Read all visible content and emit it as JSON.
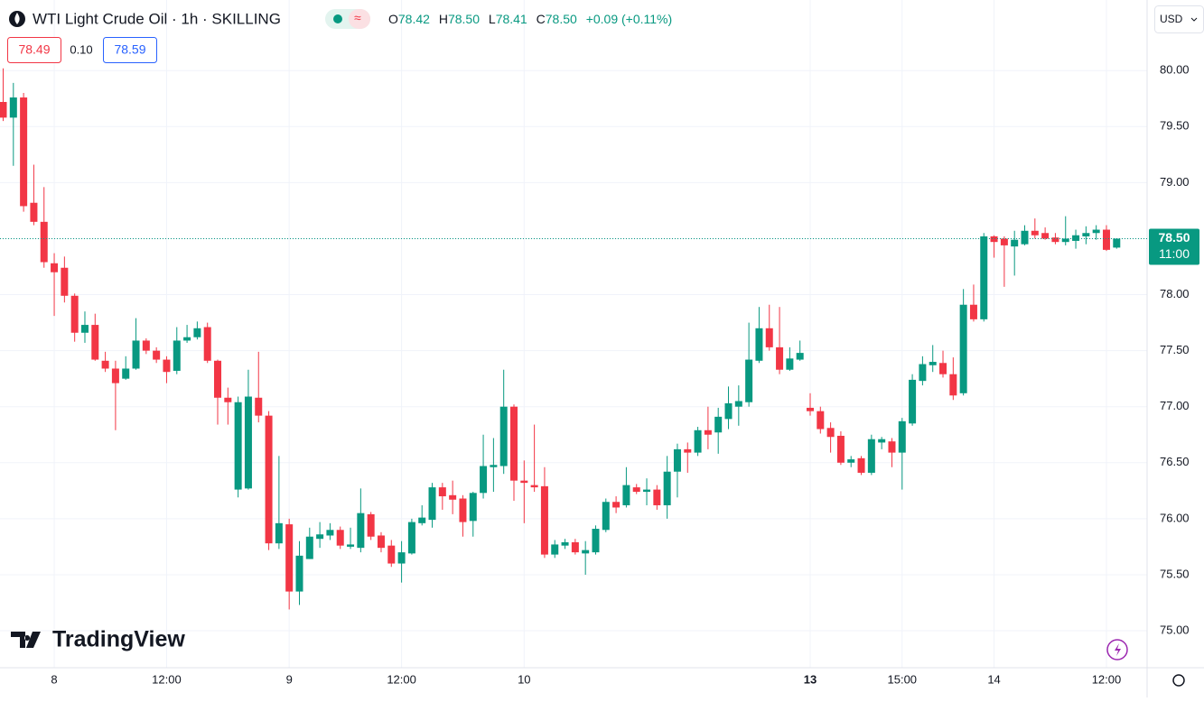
{
  "chart_data": {
    "type": "candlestick",
    "title": "WTI Light Crude Oil · 1h · SKILLING",
    "legend": {
      "o_label": "O",
      "o": "78.42",
      "h_label": "H",
      "h": "78.50",
      "l_label": "L",
      "l": "78.41",
      "c_label": "C",
      "c": "78.50",
      "change": "+0.09 (+0.11%)"
    },
    "bid": "78.49",
    "spread": "0.10",
    "ask": "78.59",
    "currency": "USD",
    "brand": "TradingView",
    "last_price": {
      "value": 78.5,
      "label": "78.50"
    },
    "countdown": "11:00",
    "up_color": "#089981",
    "down_color": "#f23645",
    "categories": [
      null,
      null,
      null,
      null,
      null,
      "8",
      null,
      null,
      null,
      null,
      null,
      null,
      null,
      null,
      null,
      null,
      "12:00",
      null,
      null,
      null,
      null,
      null,
      null,
      null,
      null,
      null,
      null,
      null,
      "9",
      null,
      null,
      null,
      null,
      null,
      null,
      null,
      null,
      null,
      null,
      "12:00",
      null,
      null,
      null,
      null,
      null,
      null,
      null,
      null,
      null,
      null,
      null,
      "10",
      null,
      null,
      null,
      null,
      null,
      null,
      null,
      null,
      null,
      null,
      null,
      null,
      null,
      null,
      null,
      null,
      null,
      null,
      null,
      null,
      null,
      null,
      null,
      null,
      null,
      null,
      null,
      "13",
      null,
      null,
      null,
      null,
      null,
      null,
      null,
      null,
      "15:00",
      null,
      null,
      null,
      null,
      null,
      null,
      null,
      null,
      "14",
      null,
      null,
      null,
      null,
      null,
      null,
      null,
      null,
      null,
      null,
      "12:00",
      null
    ],
    "open": [
      79.72,
      79.58,
      79.76,
      78.82,
      78.65,
      78.28,
      78.24,
      77.99,
      77.66,
      77.73,
      77.41,
      77.34,
      77.25,
      77.34,
      77.59,
      77.5,
      77.42,
      77.32,
      77.59,
      77.62,
      77.71,
      77.41,
      77.08,
      76.26,
      76.27,
      77.08,
      76.92,
      75.78,
      75.95,
      75.35,
      75.64,
      75.82,
      75.85,
      75.9,
      75.75,
      75.74,
      76.04,
      75.85,
      75.76,
      75.6,
      75.69,
      75.96,
      75.99,
      76.28,
      76.21,
      76.18,
      75.98,
      76.23,
      76.46,
      76.47,
      77.0,
      76.34,
      76.3,
      76.29,
      75.68,
      75.76,
      75.79,
      75.69,
      75.7,
      75.9,
      76.15,
      76.12,
      76.28,
      76.24,
      76.26,
      76.12,
      76.42,
      76.62,
      76.59,
      76.79,
      76.77,
      76.89,
      77.0,
      77.04,
      77.41,
      77.7,
      77.53,
      77.33,
      77.42,
      76.99,
      76.96,
      76.81,
      76.74,
      76.5,
      76.54,
      76.41,
      76.68,
      76.69,
      76.59,
      76.85,
      77.23,
      77.37,
      77.39,
      77.29,
      77.12,
      77.91,
      77.78,
      78.52,
      78.5,
      78.43,
      78.45,
      78.57,
      78.55,
      78.51,
      78.47,
      78.48,
      78.52,
      78.55,
      78.58,
      78.42
    ],
    "high": [
      80.02,
      79.89,
      79.8,
      79.16,
      78.96,
      78.37,
      78.34,
      78.01,
      77.85,
      77.83,
      77.49,
      77.41,
      77.45,
      77.79,
      77.61,
      77.53,
      77.45,
      77.71,
      77.73,
      77.76,
      77.75,
      77.42,
      77.17,
      77.09,
      77.33,
      77.49,
      76.96,
      76.56,
      76.0,
      75.8,
      75.92,
      75.97,
      75.96,
      75.93,
      75.92,
      76.27,
      76.06,
      75.88,
      75.81,
      75.8,
      76.0,
      76.12,
      76.32,
      76.32,
      76.34,
      76.21,
      76.24,
      76.75,
      76.72,
      77.33,
      77.02,
      76.52,
      76.84,
      76.46,
      75.81,
      75.82,
      75.82,
      75.8,
      75.94,
      76.18,
      76.2,
      76.46,
      76.31,
      76.36,
      76.3,
      76.56,
      76.67,
      76.68,
      76.82,
      77.0,
      76.99,
      77.18,
      77.19,
      77.75,
      77.89,
      77.91,
      77.89,
      77.53,
      77.59,
      77.12,
      77.0,
      76.86,
      76.78,
      76.56,
      76.56,
      76.75,
      76.73,
      76.72,
      76.9,
      77.29,
      77.45,
      77.55,
      77.5,
      77.44,
      78.05,
      78.09,
      78.55,
      78.53,
      78.52,
      78.57,
      78.62,
      78.68,
      78.6,
      78.55,
      78.7,
      78.58,
      78.61,
      78.62,
      78.62,
      78.5
    ],
    "low": [
      79.55,
      79.15,
      78.74,
      78.62,
      78.24,
      77.81,
      77.93,
      77.58,
      77.57,
      77.41,
      77.31,
      76.79,
      77.24,
      77.33,
      77.47,
      77.39,
      77.21,
      77.29,
      77.57,
      77.6,
      77.39,
      76.84,
      76.84,
      76.19,
      76.26,
      76.86,
      75.72,
      75.73,
      75.19,
      75.23,
      75.64,
      75.74,
      75.81,
      75.73,
      75.73,
      75.7,
      75.81,
      75.7,
      75.57,
      75.43,
      75.68,
      75.94,
      75.92,
      76.08,
      76.04,
      75.84,
      75.84,
      76.18,
      76.24,
      76.4,
      76.16,
      75.96,
      76.24,
      75.65,
      75.65,
      75.73,
      75.68,
      75.5,
      75.68,
      75.88,
      76.05,
      76.1,
      76.22,
      76.12,
      76.08,
      76.0,
      76.19,
      76.41,
      76.56,
      76.62,
      76.58,
      76.8,
      76.83,
      77.0,
      77.39,
      77.5,
      77.29,
      77.32,
      77.41,
      76.92,
      76.76,
      76.59,
      76.48,
      76.46,
      76.39,
      76.39,
      76.62,
      76.46,
      76.26,
      76.83,
      77.19,
      77.31,
      77.26,
      77.06,
      77.1,
      77.76,
      77.76,
      78.33,
      78.07,
      78.17,
      78.44,
      78.5,
      78.49,
      78.45,
      78.44,
      78.41,
      78.45,
      78.49,
      78.39,
      78.41
    ],
    "close": [
      79.58,
      79.76,
      78.79,
      78.65,
      78.29,
      78.2,
      77.99,
      77.66,
      77.73,
      77.42,
      77.34,
      77.21,
      77.34,
      77.59,
      77.5,
      77.42,
      77.31,
      77.59,
      77.62,
      77.7,
      77.41,
      77.08,
      77.04,
      77.04,
      77.09,
      76.92,
      75.78,
      75.96,
      75.35,
      75.67,
      75.84,
      75.86,
      75.9,
      75.76,
      75.77,
      76.05,
      75.84,
      75.74,
      75.6,
      75.7,
      75.97,
      76.01,
      76.28,
      76.2,
      76.17,
      75.97,
      76.23,
      76.47,
      76.48,
      77.0,
      76.34,
      76.32,
      76.28,
      75.68,
      75.77,
      75.79,
      75.7,
      75.72,
      75.91,
      76.15,
      76.1,
      76.3,
      76.24,
      76.26,
      76.12,
      76.42,
      76.62,
      76.59,
      76.79,
      76.75,
      76.91,
      77.03,
      77.05,
      77.42,
      77.7,
      77.53,
      77.33,
      77.43,
      77.48,
      76.96,
      76.8,
      76.73,
      76.5,
      76.53,
      76.41,
      76.71,
      76.71,
      76.59,
      76.87,
      77.24,
      77.38,
      77.4,
      77.29,
      77.1,
      77.91,
      77.78,
      78.52,
      78.47,
      78.44,
      78.49,
      78.57,
      78.53,
      78.5,
      78.47,
      78.5,
      78.53,
      78.55,
      78.58,
      78.4,
      78.5
    ],
    "ylim": [
      74.67,
      80.63
    ],
    "yticks": [
      {
        "value": 75,
        "label": "75.00"
      },
      {
        "value": 75.5,
        "label": "75.50"
      },
      {
        "value": 76,
        "label": "76.00"
      },
      {
        "value": 76.5,
        "label": "76.50"
      },
      {
        "value": 77,
        "label": "77.00"
      },
      {
        "value": 77.5,
        "label": "77.50"
      },
      {
        "value": 78,
        "label": "78.00"
      },
      {
        "value": 78.5,
        "label": "78.50"
      },
      {
        "value": 79,
        "label": "79.00"
      },
      {
        "value": 79.5,
        "label": "79.50"
      },
      {
        "value": 80,
        "label": "80.00"
      }
    ],
    "grid": true,
    "bold_category": "13"
  }
}
